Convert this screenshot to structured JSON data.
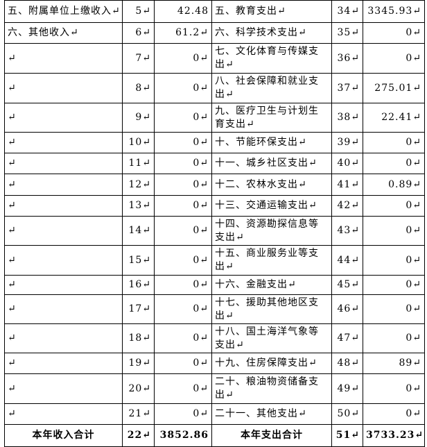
{
  "table": {
    "rows": [
      [
        "五、附属单位上缴收入↵",
        "5↵",
        "42.48",
        "五、教育支出↵",
        "34↵",
        "3345.93↵"
      ],
      [
        "六、其他收入↵",
        "6↵",
        "61.2↵",
        "六、科学技术支出↵",
        "35↵",
        "0↵"
      ],
      [
        "↵",
        "7↵",
        "0↵",
        "七、文化体育与传媒支出↵",
        "36↵",
        "0↵"
      ],
      [
        "↵",
        "8↵",
        "0↵",
        "八、社会保障和就业支出↵",
        "37↵",
        "275.01↵"
      ],
      [
        "↵",
        "9↵",
        "0↵",
        "九、医疗卫生与计划生育支出↵",
        "38↵",
        "22.41↵"
      ],
      [
        "↵",
        "10↵",
        "0↵",
        "十、节能环保支出↵",
        "39↵",
        "0↵"
      ],
      [
        "↵",
        "11↵",
        "0↵",
        "十一、城乡社区支出↵",
        "40↵",
        "0↵"
      ],
      [
        "↵",
        "12↵",
        "0↵",
        "十二、农林水支出↵",
        "41↵",
        "0.89↵"
      ],
      [
        "↵",
        "13↵",
        "0↵",
        "十三、交通运输支出↵",
        "42↵",
        "0↵"
      ],
      [
        "↵",
        "14↵",
        "0↵",
        "十四、资源勘探信息等支出↵",
        "43↵",
        "0↵"
      ],
      [
        "↵",
        "15↵",
        "0↵",
        "十五、商业服务业等支出↵",
        "44↵",
        "0↵"
      ],
      [
        "↵",
        "16↵",
        "0↵",
        "十六、金融支出↵",
        "45↵",
        "0↵"
      ],
      [
        "↵",
        "17↵",
        "0↵",
        "十七、援助其他地区支出↵",
        "46↵",
        "0↵"
      ],
      [
        "↵",
        "18↵",
        "0↵",
        "十八、国土海洋气象等支出↵",
        "47↵",
        "0↵"
      ],
      [
        "↵",
        "19↵",
        "0↵",
        "十九、住房保障支出↵",
        "48↵",
        "89↵"
      ],
      [
        "↵",
        "20↵",
        "0↵",
        "二十、粮油物资储备支出↵",
        "49↵",
        "0↵"
      ],
      [
        "↵",
        "21↵",
        "0↵",
        "二十一、其他支出↵",
        "50↵",
        "0↵"
      ],
      [
        "本年收入合计",
        "22↵",
        "3852.86",
        "本年支出合计",
        "51↵",
        "3733.23↵"
      ]
    ]
  }
}
